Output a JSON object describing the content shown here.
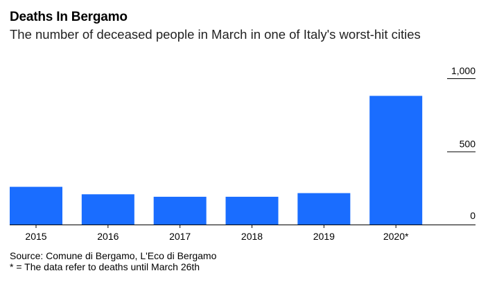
{
  "title": "Deaths In Bergamo",
  "subtitle": "The number of deceased people in March in one of Italy's worst-hit cities",
  "source": "Source: Comune di Bergamo, L'Eco di Bergamo",
  "note": "* = The data refer to deaths until March 26th",
  "chart_data": {
    "type": "bar",
    "categories": [
      "2015",
      "2016",
      "2017",
      "2018",
      "2019",
      "2020*"
    ],
    "values": [
      258,
      207,
      190,
      190,
      215,
      880
    ],
    "ylim": [
      0,
      1000
    ],
    "yticks": [
      0,
      500,
      1000
    ],
    "ytick_labels": [
      "0",
      "500",
      "1,000"
    ],
    "bar_color": "#1a6dff",
    "axis_side": "right",
    "grid": false
  }
}
